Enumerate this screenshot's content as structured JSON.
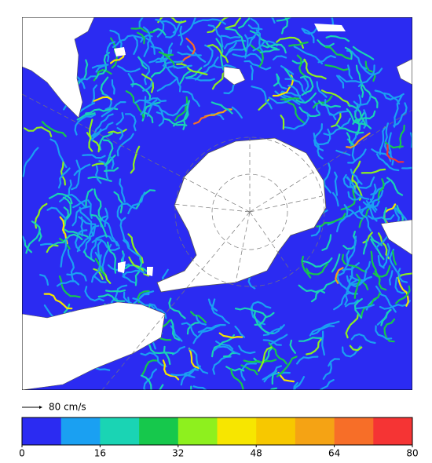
{
  "map": {
    "scale_arrow": {
      "label": "80 cm/s"
    }
  },
  "colorbar": {
    "range": [
      0,
      80
    ],
    "ticks": [
      0,
      16,
      32,
      48,
      64,
      80
    ],
    "colors": [
      "#2b2bf2",
      "#1aa0f2",
      "#1ad4b4",
      "#16c84c",
      "#8ef01e",
      "#f7e600",
      "#f7c800",
      "#f5a314",
      "#f76e28",
      "#f53434"
    ]
  }
}
